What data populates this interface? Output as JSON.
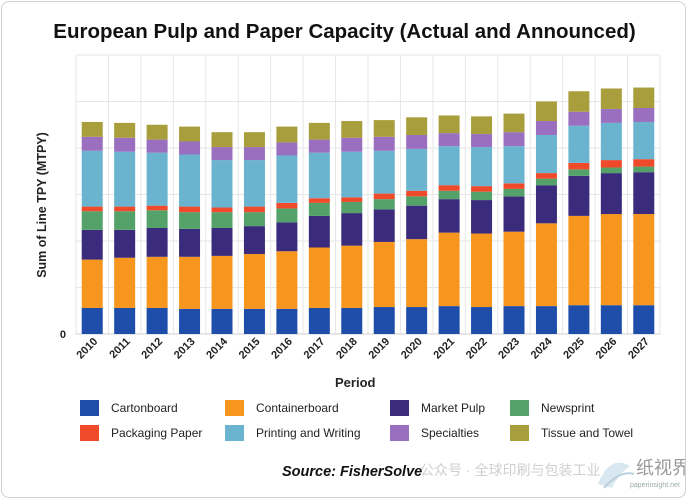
{
  "header": {
    "title": "European Pulp and Paper Capacity (Actual and Announced)"
  },
  "footer": {
    "source": "Source: FisherSolve",
    "watermark_text": "公众号 · 全球印刷与包装工业",
    "watermark_site": "paperinsight.net"
  },
  "chart_data": {
    "type": "bar",
    "stacked": true,
    "title": "European Pulp and Paper Capacity (Actual and Announced)",
    "xlabel": "Period",
    "ylabel": "Sum of Line TPY (MTPY)",
    "y_tick_labels": [
      "0"
    ],
    "grid": true,
    "legend_position": "bottom",
    "categories": [
      "2010",
      "2011",
      "2012",
      "2013",
      "2014",
      "2015",
      "2016",
      "2017",
      "2018",
      "2019",
      "2020",
      "2021",
      "2022",
      "2023",
      "2024",
      "2025",
      "2026",
      "2027"
    ],
    "series": [
      {
        "name": "Cartonboard",
        "color": "#1f4eaa",
        "values": [
          28,
          28,
          28,
          27,
          27,
          27,
          27,
          28,
          28,
          29,
          29,
          30,
          29,
          30,
          30,
          31,
          31,
          31
        ]
      },
      {
        "name": "Containerboard",
        "color": "#f6961e",
        "values": [
          52,
          54,
          55,
          56,
          57,
          59,
          62,
          65,
          67,
          70,
          73,
          79,
          79,
          80,
          89,
          96,
          98,
          98
        ]
      },
      {
        "name": "Market Pulp",
        "color": "#3b2b7c",
        "values": [
          32,
          30,
          31,
          30,
          30,
          30,
          31,
          34,
          35,
          35,
          36,
          36,
          36,
          38,
          41,
          43,
          44,
          45
        ]
      },
      {
        "name": "Newsprint",
        "color": "#54a26a",
        "values": [
          20,
          20,
          19,
          18,
          17,
          15,
          15,
          14,
          12,
          11,
          10,
          9,
          9,
          8,
          7,
          7,
          6,
          6
        ]
      },
      {
        "name": "Packaging Paper",
        "color": "#ef4a2a",
        "values": [
          5,
          5,
          5,
          6,
          5,
          6,
          6,
          5,
          5,
          6,
          6,
          6,
          6,
          6,
          6,
          7,
          8,
          8
        ]
      },
      {
        "name": "Printing and Writing",
        "color": "#6ab4d0",
        "values": [
          60,
          59,
          57,
          56,
          51,
          50,
          51,
          49,
          49,
          46,
          45,
          42,
          42,
          40,
          41,
          40,
          40,
          40
        ]
      },
      {
        "name": "Specialties",
        "color": "#9b6fc0",
        "values": [
          15,
          15,
          14,
          14,
          14,
          14,
          14,
          14,
          15,
          15,
          15,
          14,
          14,
          15,
          15,
          15,
          15,
          15
        ]
      },
      {
        "name": "Tissue and Towel",
        "color": "#a89e3c",
        "values": [
          16,
          16,
          16,
          16,
          16,
          16,
          17,
          18,
          18,
          18,
          19,
          19,
          19,
          20,
          21,
          22,
          22,
          22
        ]
      }
    ]
  }
}
